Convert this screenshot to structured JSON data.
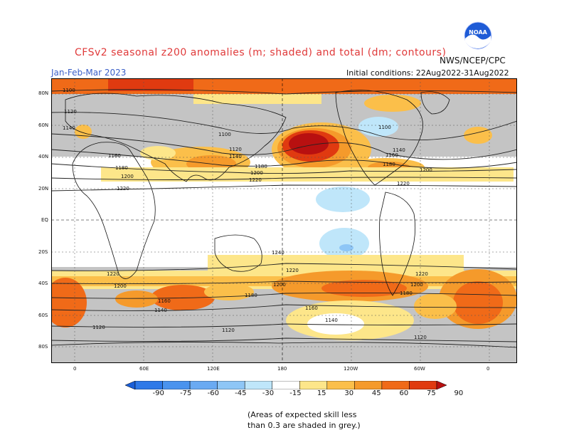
{
  "title": "CFSv2 seasonal z200 anomalies (m; shaded) and total (dm; contours)",
  "period": "Jan-Feb-Mar 2023",
  "initial_conditions": "Initial conditions: 22Aug2022-31Aug2022",
  "agency": "NWS/NCEP/CPC",
  "logo_text": "NOAA",
  "lat_labels": [
    "80N",
    "60N",
    "40N",
    "20N",
    "EQ",
    "20S",
    "40S",
    "60S",
    "80S"
  ],
  "lon_labels": [
    "0",
    "60E",
    "120E",
    "180",
    "120W",
    "60W",
    "0"
  ],
  "colorbar": {
    "labels": [
      "-90",
      "-75",
      "-60",
      "-45",
      "-30",
      "-15",
      "15",
      "30",
      "45",
      "60",
      "75",
      "90"
    ],
    "colors": [
      "#1a5fd8",
      "#2e79e8",
      "#4a93ee",
      "#6aaaf2",
      "#8ec6f6",
      "#bfe6fa",
      "#ffffff",
      "#fde68a",
      "#fbbf4a",
      "#f59a2b",
      "#f06a18",
      "#e03a10",
      "#b81010"
    ]
  },
  "contour_labels": [
    "1100",
    "1120",
    "1140",
    "1160",
    "1180",
    "1200",
    "1220",
    "1240"
  ],
  "note_line1": "(Areas of expected skill less",
  "note_line2": "than 0.3 are shaded in grey.)"
}
